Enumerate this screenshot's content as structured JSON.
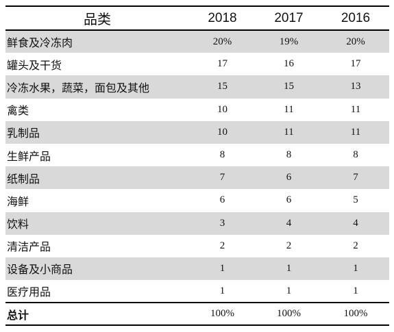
{
  "table": {
    "headers": [
      "品类",
      "2018",
      "2017",
      "2016"
    ],
    "rows": [
      [
        "鲜食及冷冻肉",
        "20%",
        "19%",
        "20%"
      ],
      [
        "罐头及干货",
        "17",
        "16",
        "17"
      ],
      [
        "冷冻水果，蔬菜，面包及其他",
        "15",
        "15",
        "13"
      ],
      [
        "禽类",
        "10",
        "11",
        "11"
      ],
      [
        "乳制品",
        "10",
        "11",
        "11"
      ],
      [
        "生鲜产品",
        "8",
        "8",
        "8"
      ],
      [
        "纸制品",
        "7",
        "6",
        "7"
      ],
      [
        "海鲜",
        "6",
        "6",
        "5"
      ],
      [
        "饮料",
        "3",
        "4",
        "4"
      ],
      [
        "清洁产品",
        "2",
        "2",
        "2"
      ],
      [
        "设备及小商品",
        "1",
        "1",
        "1"
      ],
      [
        "医疗用品",
        "1",
        "1",
        "1"
      ]
    ],
    "total": [
      "总计",
      "100%",
      "100%",
      "100%"
    ],
    "shade_color": "#d9d9d9"
  }
}
